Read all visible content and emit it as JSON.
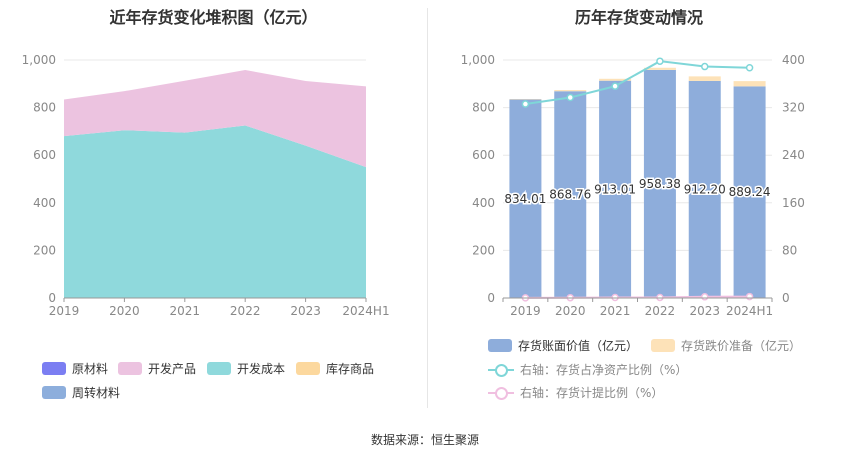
{
  "titles": {
    "left": "近年存货变化堆积图（亿元）",
    "right": "历年存货变动情况"
  },
  "source": "数据来源：恒生聚源",
  "chart_data": [
    {
      "type": "area",
      "stacked": true,
      "categories": [
        "2019",
        "2020",
        "2021",
        "2022",
        "2023",
        "2024H1"
      ],
      "ylim": [
        0,
        1000
      ],
      "yticks": [
        "0",
        "200",
        "400",
        "600",
        "800",
        "1,000"
      ],
      "grid": true,
      "legend_position": "bottom",
      "series": [
        {
          "name": "原材料",
          "color": "#7b7ef2",
          "values": [
            0,
            0,
            0,
            0,
            0,
            0
          ]
        },
        {
          "name": "开发成本",
          "color": "#8fd9dc",
          "values": [
            680,
            705,
            695,
            725,
            640,
            550
          ]
        },
        {
          "name": "开发产品",
          "color": "#ecc3e0",
          "values": [
            154,
            164,
            218,
            233,
            272,
            339
          ]
        },
        {
          "name": "库存商品",
          "color": "#fcd89e",
          "values": [
            0,
            0,
            0,
            0,
            0,
            0
          ]
        },
        {
          "name": "周转材料",
          "color": "#8daedc",
          "values": [
            0,
            0,
            0,
            0,
            0,
            0
          ]
        }
      ],
      "legend_order": [
        "原材料",
        "开发产品",
        "开发成本",
        "库存商品",
        "周转材料"
      ]
    },
    {
      "type": "bar",
      "stacked": true,
      "categories": [
        "2019",
        "2020",
        "2021",
        "2022",
        "2023",
        "2024H1"
      ],
      "ylim": [
        0,
        1000
      ],
      "yticks": [
        "0",
        "200",
        "400",
        "600",
        "800",
        "1,000"
      ],
      "y2lim": [
        0,
        400
      ],
      "y2ticks": [
        "0",
        "80",
        "160",
        "240",
        "320",
        "400"
      ],
      "grid": true,
      "legend_position": "bottom",
      "series": [
        {
          "name": "存货账面价值（亿元）",
          "color": "#8eaddb",
          "axis": "left",
          "values": [
            834.01,
            868.76,
            913.01,
            958.38,
            912.2,
            889.24
          ],
          "labels": [
            "834.01",
            "868.76",
            "913.01",
            "958.38",
            "912.20",
            "889.24"
          ]
        },
        {
          "name": "存货跌价准备（亿元）",
          "color": "#fde2b8",
          "axis": "left",
          "values": [
            2,
            5,
            8,
            9,
            19,
            22
          ]
        },
        {
          "name": "右轴：存货占净资产比例（%）",
          "color": "#7fd6d8",
          "axis": "right",
          "type": "line",
          "values": [
            326,
            337,
            356,
            398,
            389,
            387
          ]
        },
        {
          "name": "右轴：存货计提比例（%）",
          "color": "#f0bfe0",
          "axis": "right",
          "type": "line",
          "values": [
            0.2,
            0.5,
            0.8,
            0.9,
            2.0,
            2.4
          ]
        }
      ]
    }
  ]
}
